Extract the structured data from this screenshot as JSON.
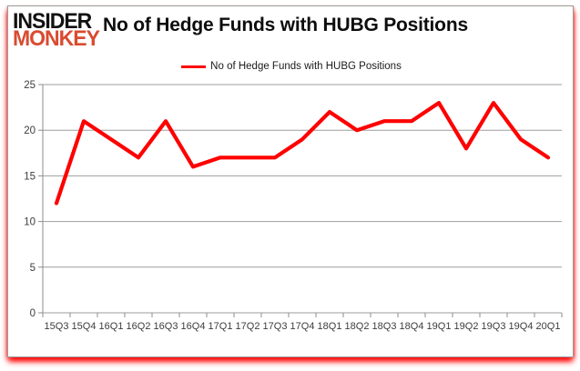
{
  "logo": {
    "line1": "INSIDER",
    "line2": "MONKEY",
    "color1": "#111111",
    "color2": "#d94b30"
  },
  "header": {
    "title": "No of Hedge Funds with HUBG Positions"
  },
  "legend": {
    "label": "No of Hedge Funds with HUBG Positions",
    "swatch_color": "#fe0000"
  },
  "chart_data": {
    "type": "line",
    "title": "No of Hedge Funds with HUBG Positions",
    "categories": [
      "15Q3",
      "15Q4",
      "16Q1",
      "16Q2",
      "16Q3",
      "16Q4",
      "17Q1",
      "17Q2",
      "17Q3",
      "17Q4",
      "18Q1",
      "18Q2",
      "18Q3",
      "18Q4",
      "19Q1",
      "19Q2",
      "19Q3",
      "19Q4",
      "20Q1"
    ],
    "series": [
      {
        "name": "No of Hedge Funds with HUBG Positions",
        "color": "#fe0000",
        "values": [
          12,
          21,
          19,
          17,
          21,
          16,
          17,
          17,
          17,
          19,
          22,
          20,
          21,
          21,
          23,
          18,
          23,
          19,
          17
        ]
      }
    ],
    "xlabel": "",
    "ylabel": "",
    "ylim": [
      0,
      25
    ],
    "yticks": [
      0,
      5,
      10,
      15,
      20,
      25
    ],
    "grid": true,
    "legend_position": "top",
    "gridline_color": "#9e9e9e",
    "axis_color": "#8c8c8c",
    "tick_label_color": "#3c3c3c"
  }
}
